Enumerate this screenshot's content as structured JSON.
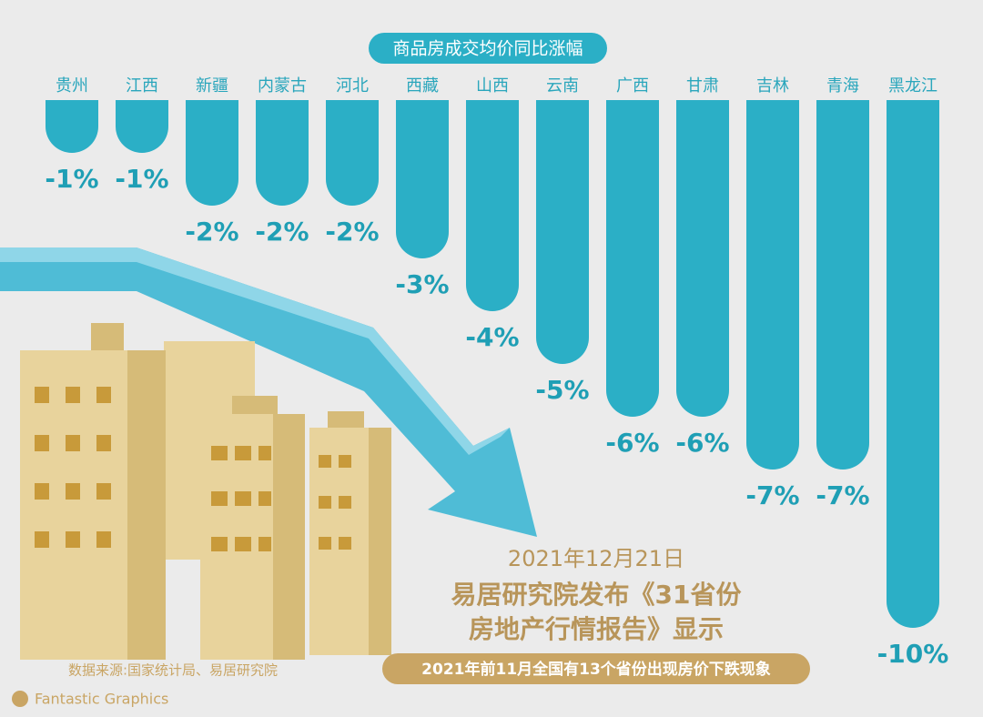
{
  "chart_data": {
    "type": "bar",
    "title": "商品房成交均价同比涨幅",
    "categories": [
      "贵州",
      "江西",
      "新疆",
      "内蒙古",
      "河北",
      "西藏",
      "山西",
      "云南",
      "广西",
      "甘肃",
      "吉林",
      "青海",
      "黑龙江"
    ],
    "values": [
      -1,
      -1,
      -2,
      -2,
      -2,
      -3,
      -4,
      -5,
      -6,
      -6,
      -7,
      -7,
      -10
    ],
    "value_labels": [
      "-1%",
      "-1%",
      "-2%",
      "-2%",
      "-2%",
      "-3%",
      "-4%",
      "-5%",
      "-6%",
      "-6%",
      "-7%",
      "-7%",
      "-10%"
    ],
    "color": "#2bafc6",
    "ylim": [
      -10,
      0
    ],
    "annotations": [
      "2021年12月21日",
      "易居研究院发布《31省份",
      "房地产行情报告》显示",
      "2021年前11月全国有13个省份出现房价下跌现象"
    ],
    "source": "数据来源:国家统计局、易居研究院",
    "brand": "Fantastic Graphics"
  }
}
